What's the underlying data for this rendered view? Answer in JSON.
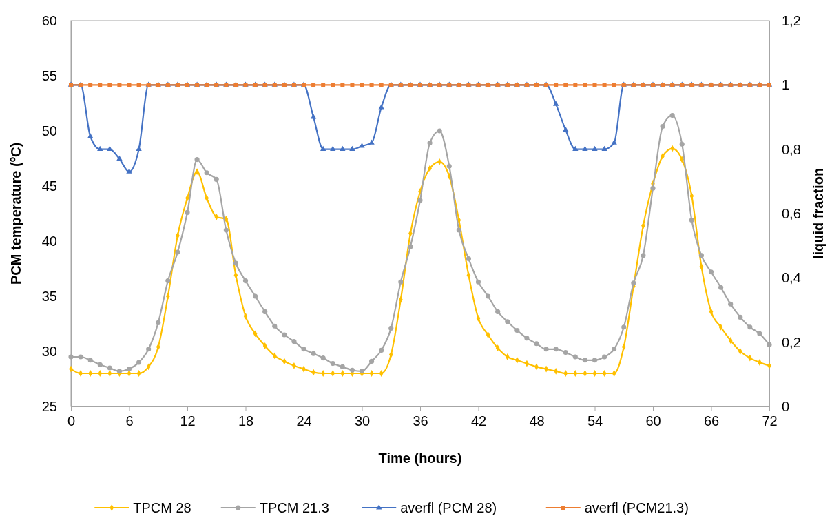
{
  "chart_data": {
    "type": "line",
    "xlabel": "Time (hours)",
    "ylabel": "PCM temperature  (ºC)",
    "y2label": "liquid fraction",
    "x": [
      0,
      1,
      2,
      3,
      4,
      5,
      6,
      7,
      8,
      9,
      10,
      11,
      12,
      13,
      14,
      15,
      16,
      17,
      18,
      19,
      20,
      21,
      22,
      23,
      24,
      25,
      26,
      27,
      28,
      29,
      30,
      31,
      32,
      33,
      34,
      35,
      36,
      37,
      38,
      39,
      40,
      41,
      42,
      43,
      44,
      45,
      46,
      47,
      48,
      49,
      50,
      51,
      52,
      53,
      54,
      55,
      56,
      57,
      58,
      59,
      60,
      61,
      62,
      63,
      64,
      65,
      66,
      67,
      68,
      69,
      70,
      71,
      72
    ],
    "xlim": [
      0,
      72
    ],
    "xticks": [
      0,
      6,
      12,
      18,
      24,
      30,
      36,
      42,
      48,
      54,
      60,
      66,
      72
    ],
    "ylim": [
      25,
      60
    ],
    "yticks": [
      25,
      30,
      35,
      40,
      45,
      50,
      55,
      60
    ],
    "y2lim": [
      0,
      1.2
    ],
    "y2ticks": [
      {
        "value": 0,
        "label": "0"
      },
      {
        "value": 0.2,
        "label": "0,2"
      },
      {
        "value": 0.4,
        "label": "0,4"
      },
      {
        "value": 0.6,
        "label": "0,6"
      },
      {
        "value": 0.8,
        "label": "0,8"
      },
      {
        "value": 1,
        "label": "1"
      },
      {
        "value": 1.2,
        "label": "1,2"
      }
    ],
    "legend": "bottom",
    "grid": false,
    "series": [
      {
        "name": "TPCM 28",
        "color": "#ffc000",
        "marker": "diamond",
        "values": [
          28.4,
          28.0,
          28.0,
          28.0,
          28.0,
          28.0,
          28.0,
          28.0,
          28.6,
          30.4,
          35.0,
          40.5,
          43.9,
          46.3,
          43.9,
          42.2,
          42.0,
          36.9,
          33.2,
          31.6,
          30.5,
          29.6,
          29.1,
          28.7,
          28.4,
          28.1,
          28.0,
          28.0,
          28.0,
          28.0,
          28.0,
          28.0,
          28.0,
          29.7,
          34.7,
          40.7,
          44.5,
          46.6,
          47.2,
          45.9,
          41.9,
          36.9,
          33.0,
          31.5,
          30.3,
          29.5,
          29.2,
          28.9,
          28.6,
          28.4,
          28.2,
          28.0,
          28.0,
          28.0,
          28.0,
          28.0,
          28.0,
          30.4,
          35.9,
          41.4,
          45.2,
          47.7,
          48.4,
          47.4,
          44.1,
          37.7,
          33.6,
          32.2,
          31.0,
          30.0,
          29.4,
          29.0,
          28.7
        ]
      },
      {
        "name": "TPCM 21.3",
        "color": "#a5a5a5",
        "marker": "circle",
        "values": [
          29.5,
          29.5,
          29.2,
          28.8,
          28.5,
          28.2,
          28.4,
          29.0,
          30.2,
          32.6,
          36.4,
          39.0,
          42.6,
          47.4,
          46.2,
          45.6,
          41.0,
          38.0,
          36.4,
          35.0,
          33.6,
          32.3,
          31.5,
          30.9,
          30.2,
          29.8,
          29.4,
          28.9,
          28.6,
          28.3,
          28.2,
          29.1,
          30.1,
          32.1,
          36.3,
          39.5,
          43.7,
          48.9,
          50.0,
          46.8,
          41.0,
          38.4,
          36.3,
          35.0,
          33.6,
          32.7,
          31.9,
          31.2,
          30.7,
          30.2,
          30.2,
          29.9,
          29.5,
          29.2,
          29.2,
          29.5,
          30.2,
          32.2,
          36.2,
          38.7,
          44.8,
          50.4,
          51.4,
          48.8,
          41.9,
          38.7,
          37.2,
          35.8,
          34.3,
          33.1,
          32.2,
          31.6,
          30.6
        ]
      },
      {
        "name": "averfl (PCM 28)",
        "color": "#4472c4",
        "marker": "triangle",
        "axis": "y2",
        "values": [
          1,
          1,
          0.84,
          0.8,
          0.8,
          0.77,
          0.73,
          0.8,
          1,
          1,
          1,
          1,
          1,
          1,
          1,
          1,
          1,
          1,
          1,
          1,
          1,
          1,
          1,
          1,
          1,
          0.9,
          0.8,
          0.8,
          0.8,
          0.8,
          0.81,
          0.82,
          0.93,
          1,
          1,
          1,
          1,
          1,
          1,
          1,
          1,
          1,
          1,
          1,
          1,
          1,
          1,
          1,
          1,
          1,
          0.94,
          0.86,
          0.8,
          0.8,
          0.8,
          0.8,
          0.82,
          1,
          1,
          1,
          1,
          1,
          1,
          1,
          1,
          1,
          1,
          1,
          1,
          1,
          1,
          1,
          1
        ]
      },
      {
        "name": "averfl (PCM21.3)",
        "color": "#ed7d31",
        "marker": "square",
        "axis": "y2",
        "values": [
          1,
          1,
          1,
          1,
          1,
          1,
          1,
          1,
          1,
          1,
          1,
          1,
          1,
          1,
          1,
          1,
          1,
          1,
          1,
          1,
          1,
          1,
          1,
          1,
          1,
          1,
          1,
          1,
          1,
          1,
          1,
          1,
          1,
          1,
          1,
          1,
          1,
          1,
          1,
          1,
          1,
          1,
          1,
          1,
          1,
          1,
          1,
          1,
          1,
          1,
          1,
          1,
          1,
          1,
          1,
          1,
          1,
          1,
          1,
          1,
          1,
          1,
          1,
          1,
          1,
          1,
          1,
          1,
          1,
          1,
          1,
          1,
          1
        ]
      }
    ]
  }
}
